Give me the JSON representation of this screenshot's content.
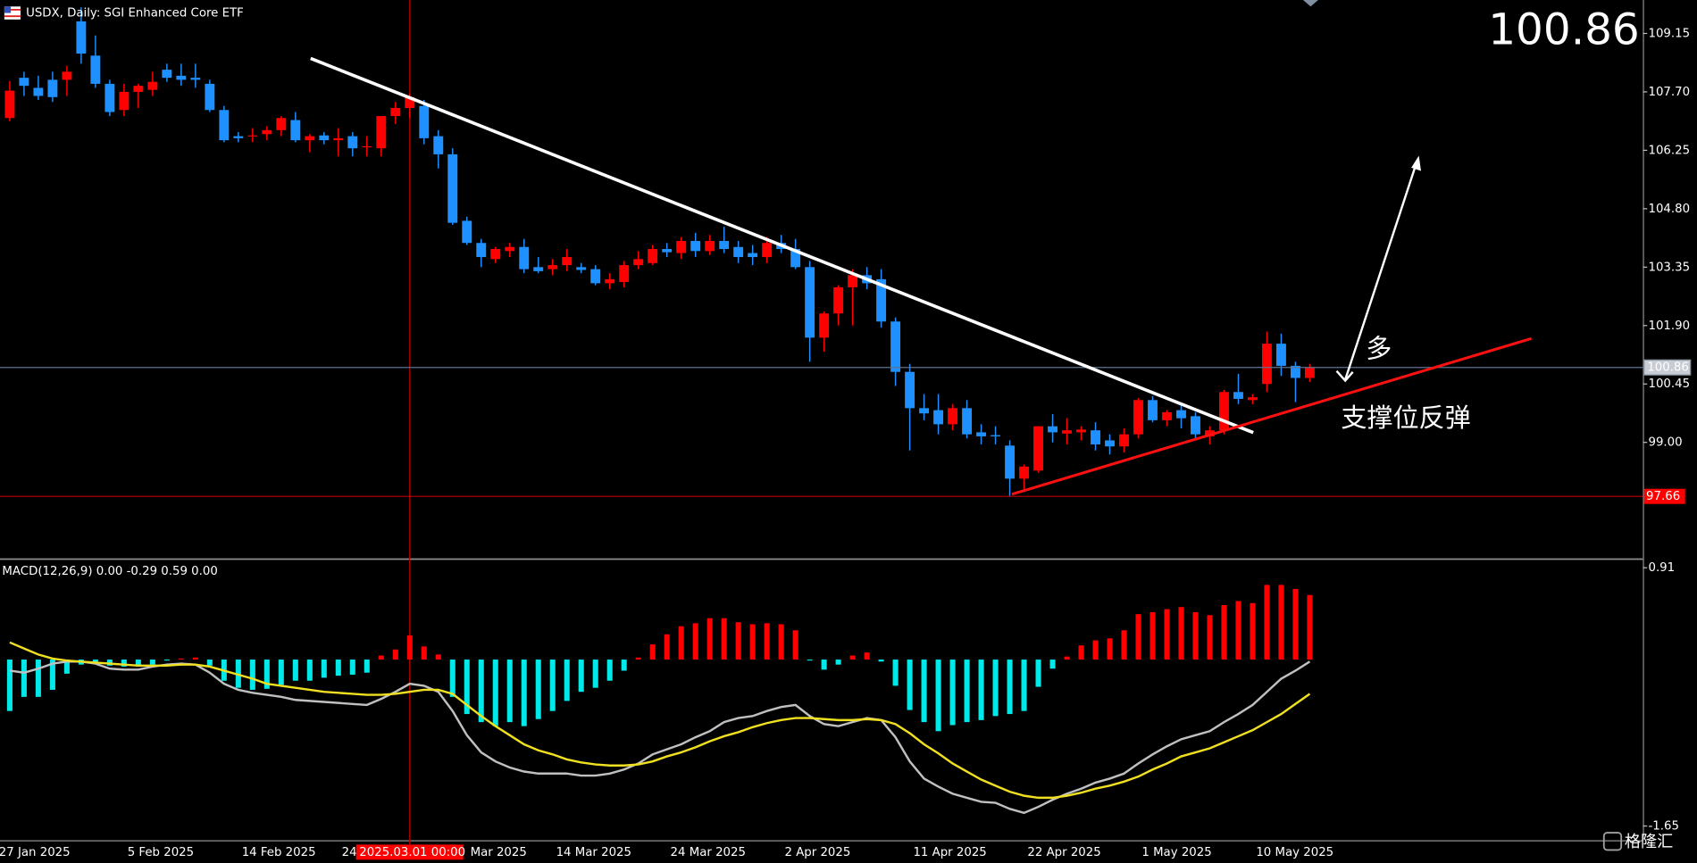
{
  "chart_data": [
    {
      "type": "candlestick",
      "title": "USDX, Daily:  SGI Enhanced Core ETF",
      "categories": [
        "27 Jan 2025",
        null,
        null,
        null,
        null,
        null,
        null,
        null,
        null,
        "5 Feb 2025",
        null,
        null,
        null,
        null,
        null,
        null,
        null,
        "14 Feb 2025",
        null,
        null,
        null,
        null,
        null,
        null,
        "24",
        null,
        null,
        null,
        null,
        null,
        null,
        null,
        null,
        "Mar 2025",
        null,
        null,
        null,
        null,
        null,
        "14 Mar 2025",
        null,
        null,
        null,
        null,
        null,
        null,
        null,
        "24 Mar 2025",
        null,
        null,
        null,
        null,
        null,
        null,
        null,
        "2 Apr 2025",
        null,
        null,
        null,
        null,
        null,
        null,
        null,
        null,
        "11 Apr 2025",
        null,
        null,
        null,
        null,
        null,
        null,
        null,
        "22 Apr 2025",
        null,
        null,
        null,
        null,
        null,
        null,
        null,
        "1 May 2025",
        null,
        null,
        null,
        null,
        null,
        null,
        null,
        "10 May 2025",
        null,
        null,
        null
      ],
      "open": [
        107.05,
        108.05,
        107.8,
        108.0,
        108.0,
        109.45,
        108.6,
        107.9,
        107.25,
        107.7,
        107.75,
        108.25,
        108.1,
        108.05,
        107.9,
        107.25,
        106.6,
        106.6,
        106.65,
        106.75,
        107.0,
        106.5,
        106.62,
        106.5,
        106.6,
        106.35,
        106.3,
        107.1,
        107.3,
        107.35,
        106.6,
        106.15,
        104.5,
        103.95,
        103.55,
        103.75,
        103.85,
        103.35,
        103.3,
        103.4,
        103.35,
        103.3,
        102.95,
        102.98,
        103.4,
        103.45,
        103.8,
        103.7,
        104.0,
        103.75,
        104.0,
        103.85,
        103.7,
        103.6,
        103.95,
        103.8,
        103.35,
        101.6,
        102.2,
        102.85,
        103.15,
        103.05,
        102.0,
        100.75,
        99.85,
        99.8,
        99.45,
        99.85,
        99.25,
        99.18,
        98.92,
        98.1,
        98.3,
        99.4,
        99.22,
        99.25,
        99.3,
        99.05,
        98.9,
        99.2,
        100.05,
        99.55,
        99.8,
        99.65,
        99.15,
        99.3,
        100.25,
        100.05,
        100.45,
        101.45,
        100.9,
        100.6
      ],
      "high": [
        107.97,
        108.2,
        108.1,
        108.2,
        108.35,
        109.8,
        109.1,
        108.0,
        107.9,
        107.9,
        108.2,
        108.4,
        108.4,
        108.4,
        108.0,
        107.35,
        106.7,
        106.8,
        106.85,
        107.1,
        107.2,
        106.65,
        106.7,
        106.8,
        106.7,
        106.6,
        107.1,
        107.45,
        107.65,
        107.5,
        106.75,
        106.3,
        104.6,
        104.05,
        103.85,
        103.95,
        104.05,
        103.6,
        103.55,
        103.8,
        103.45,
        103.4,
        103.2,
        103.5,
        103.75,
        103.9,
        103.95,
        104.1,
        104.2,
        104.15,
        104.35,
        104.0,
        103.9,
        104.1,
        104.15,
        104.05,
        103.5,
        102.25,
        102.9,
        103.3,
        103.35,
        103.3,
        102.1,
        100.95,
        100.2,
        100.2,
        99.95,
        100.05,
        99.45,
        99.4,
        99.05,
        98.45,
        99.4,
        99.7,
        99.6,
        99.4,
        99.5,
        99.2,
        99.35,
        100.1,
        100.15,
        99.8,
        99.95,
        99.75,
        99.4,
        100.3,
        100.7,
        100.2,
        101.75,
        101.7,
        101.0,
        100.95
      ],
      "low": [
        106.97,
        107.6,
        107.5,
        107.45,
        107.6,
        108.4,
        107.8,
        107.1,
        107.1,
        107.3,
        107.6,
        107.95,
        107.85,
        107.8,
        107.2,
        106.45,
        106.45,
        106.45,
        106.5,
        106.6,
        106.45,
        106.2,
        106.4,
        106.1,
        106.1,
        106.1,
        106.1,
        106.9,
        107.05,
        106.4,
        105.8,
        104.4,
        103.9,
        103.35,
        103.45,
        103.6,
        103.2,
        103.2,
        103.15,
        103.25,
        103.2,
        102.9,
        102.8,
        102.85,
        103.3,
        103.4,
        103.6,
        103.55,
        103.6,
        103.65,
        103.7,
        103.45,
        103.4,
        103.45,
        103.7,
        103.3,
        101.0,
        101.25,
        101.9,
        101.9,
        102.8,
        101.85,
        100.4,
        98.8,
        99.55,
        99.2,
        99.3,
        99.1,
        98.95,
        98.95,
        97.66,
        97.8,
        98.25,
        99.0,
        98.95,
        99.05,
        98.8,
        98.7,
        98.75,
        99.1,
        99.5,
        99.4,
        99.35,
        99.1,
        98.95,
        99.2,
        99.95,
        99.95,
        100.25,
        100.65,
        100.0,
        100.5
      ],
      "close": [
        107.73,
        107.85,
        107.6,
        107.57,
        108.2,
        108.65,
        107.9,
        107.2,
        107.7,
        107.85,
        107.95,
        108.05,
        108.0,
        108.0,
        107.25,
        106.5,
        106.55,
        106.62,
        106.75,
        107.05,
        106.5,
        106.6,
        106.5,
        106.55,
        106.3,
        106.35,
        107.1,
        107.3,
        107.57,
        106.55,
        106.15,
        104.45,
        103.95,
        103.6,
        103.8,
        103.85,
        103.3,
        103.25,
        103.4,
        103.6,
        103.28,
        102.95,
        103.05,
        103.4,
        103.55,
        103.8,
        103.72,
        104.0,
        103.75,
        104.0,
        103.8,
        103.6,
        103.6,
        103.95,
        103.8,
        103.35,
        101.6,
        102.2,
        102.85,
        103.15,
        102.95,
        102.0,
        100.75,
        99.85,
        99.72,
        99.45,
        99.85,
        99.2,
        99.15,
        99.15,
        98.1,
        98.4,
        99.4,
        99.25,
        99.3,
        99.32,
        98.95,
        98.9,
        99.2,
        100.05,
        99.55,
        99.75,
        99.6,
        99.2,
        99.3,
        100.25,
        100.08,
        100.12,
        101.45,
        100.9,
        100.6,
        100.86
      ],
      "up_color": "#ff0000",
      "down_color": "#1e90ff",
      "ylim": [
        96.13,
        109.98
      ],
      "yticks": [
        109.15,
        {
          "value": 107.7,
          "label": "107.70"
        },
        106.25,
        {
          "value": 104.8,
          "label": "104.80"
        },
        103.35,
        {
          "value": 101.9,
          "label": "101.90"
        },
        100.45,
        {
          "value": 99,
          "label": "99.00"
        }
      ],
      "last_price": 100.86,
      "last_price_color": "#7fff00",
      "low_line": 97.66,
      "low_line_color": "#c00000",
      "crosshair_label": "2025.03.01 00:00",
      "annotations": [
        "多",
        "支撑位反弹"
      ]
    },
    {
      "type": "macd",
      "title": "MACD(12,26,9) 0.00 -0.29 0.59 0.00",
      "histogram": [
        -0.51,
        -0.37,
        -0.37,
        -0.3,
        -0.14,
        -0.05,
        -0.04,
        -0.06,
        -0.07,
        -0.07,
        -0.05,
        -0.01,
        0.01,
        0.02,
        -0.06,
        -0.21,
        -0.28,
        -0.3,
        -0.29,
        -0.25,
        -0.21,
        -0.21,
        -0.18,
        -0.16,
        -0.15,
        -0.13,
        0.04,
        0.1,
        0.24,
        0.13,
        0.05,
        -0.37,
        -0.54,
        -0.62,
        -0.66,
        -0.62,
        -0.66,
        -0.59,
        -0.51,
        -0.41,
        -0.32,
        -0.28,
        -0.21,
        -0.11,
        0.02,
        0.15,
        0.25,
        0.33,
        0.36,
        0.41,
        0.41,
        0.37,
        0.35,
        0.36,
        0.35,
        0.29,
        -0.01,
        -0.1,
        -0.05,
        0.04,
        0.07,
        -0.02,
        -0.26,
        -0.5,
        -0.62,
        -0.71,
        -0.65,
        -0.62,
        -0.6,
        -0.56,
        -0.54,
        -0.51,
        -0.27,
        -0.09,
        0.03,
        0.14,
        0.19,
        0.21,
        0.29,
        0.45,
        0.47,
        0.5,
        0.52,
        0.47,
        0.44,
        0.54,
        0.58,
        0.56,
        0.74,
        0.74,
        0.7,
        0.64
      ],
      "pos_color": "#ff0000",
      "neg_color": "#00e8e8",
      "series": [
        {
          "color": "#c0c0c0",
          "values": [
            -0.11,
            -0.13,
            -0.09,
            -0.04,
            -0.02,
            -0.02,
            -0.04,
            -0.09,
            -0.1,
            -0.1,
            -0.07,
            -0.05,
            -0.04,
            -0.05,
            -0.13,
            -0.24,
            -0.3,
            -0.33,
            -0.35,
            -0.37,
            -0.4,
            -0.41,
            -0.42,
            -0.43,
            -0.44,
            -0.45,
            -0.39,
            -0.32,
            -0.24,
            -0.26,
            -0.32,
            -0.51,
            -0.75,
            -0.92,
            -1.01,
            -1.07,
            -1.11,
            -1.13,
            -1.13,
            -1.13,
            -1.15,
            -1.15,
            -1.13,
            -1.09,
            -1.03,
            -0.94,
            -0.89,
            -0.84,
            -0.77,
            -0.71,
            -0.62,
            -0.58,
            -0.56,
            -0.51,
            -0.47,
            -0.45,
            -0.56,
            -0.64,
            -0.66,
            -0.62,
            -0.58,
            -0.6,
            -0.77,
            -1.01,
            -1.18,
            -1.26,
            -1.33,
            -1.37,
            -1.41,
            -1.42,
            -1.48,
            -1.52,
            -1.46,
            -1.39,
            -1.33,
            -1.28,
            -1.22,
            -1.18,
            -1.13,
            -1.03,
            -0.94,
            -0.86,
            -0.79,
            -0.75,
            -0.71,
            -0.62,
            -0.54,
            -0.45,
            -0.32,
            -0.19,
            -0.11,
            -0.02
          ]
        },
        {
          "color": "#f0e020",
          "values": [
            0.17,
            0.11,
            0.05,
            0.01,
            -0.01,
            -0.02,
            -0.03,
            -0.04,
            -0.05,
            -0.06,
            -0.06,
            -0.06,
            -0.05,
            -0.05,
            -0.07,
            -0.11,
            -0.15,
            -0.19,
            -0.24,
            -0.26,
            -0.28,
            -0.3,
            -0.32,
            -0.33,
            -0.34,
            -0.35,
            -0.35,
            -0.34,
            -0.32,
            -0.3,
            -0.3,
            -0.34,
            -0.45,
            -0.56,
            -0.66,
            -0.75,
            -0.84,
            -0.9,
            -0.94,
            -0.99,
            -1.02,
            -1.04,
            -1.05,
            -1.05,
            -1.04,
            -1.01,
            -0.96,
            -0.92,
            -0.87,
            -0.81,
            -0.76,
            -0.72,
            -0.67,
            -0.63,
            -0.6,
            -0.58,
            -0.58,
            -0.59,
            -0.6,
            -0.6,
            -0.59,
            -0.6,
            -0.64,
            -0.73,
            -0.84,
            -0.93,
            -1.03,
            -1.11,
            -1.19,
            -1.25,
            -1.31,
            -1.35,
            -1.37,
            -1.37,
            -1.35,
            -1.32,
            -1.28,
            -1.25,
            -1.21,
            -1.16,
            -1.09,
            -1.03,
            -0.96,
            -0.92,
            -0.88,
            -0.82,
            -0.76,
            -0.7,
            -0.62,
            -0.54,
            -0.44,
            -0.34
          ]
        }
      ],
      "ylim": [
        -1.77,
        0.985
      ],
      "yticks": [
        0.91,
        -1.65
      ]
    }
  ],
  "watermark": "格隆汇"
}
